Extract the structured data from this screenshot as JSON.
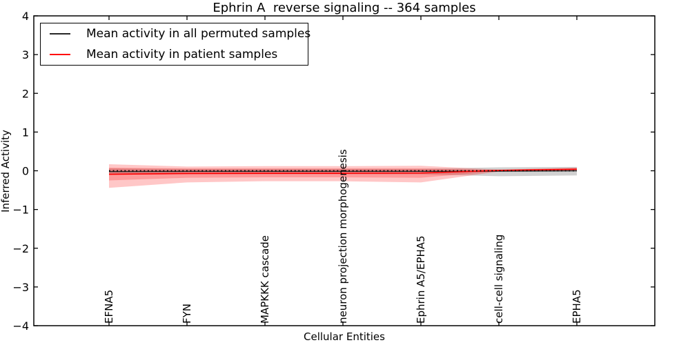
{
  "chart_data": {
    "type": "line",
    "title": "Ephrin A  reverse signaling -- 364 samples",
    "xlabel": "Cellular Entities",
    "ylabel": "Inferred Activity",
    "ylim": [
      -4,
      4
    ],
    "grid": false,
    "yticks": [
      {
        "value": 4,
        "label": "4"
      },
      {
        "value": 3,
        "label": "3"
      },
      {
        "value": 2,
        "label": "2"
      },
      {
        "value": 1,
        "label": "1"
      },
      {
        "value": 0,
        "label": "0"
      },
      {
        "value": -1,
        "label": "−1"
      },
      {
        "value": -2,
        "label": "−2"
      },
      {
        "value": -3,
        "label": "−3"
      },
      {
        "value": -4,
        "label": "−4"
      }
    ],
    "categories": [
      "EFNA5",
      "FYN",
      "MAPKKK cascade",
      "neuron projection morphogenesis",
      "Ephrin A5/EPHA5",
      "cell-cell signaling",
      "EPHA5"
    ],
    "series": [
      {
        "name": "Mean activity in all permuted samples",
        "slug": "permuted-mean-line",
        "color": "#262626",
        "style": "solid",
        "width": 1.4,
        "values": [
          -0.02,
          -0.015,
          -0.015,
          -0.015,
          -0.015,
          -0.01,
          0.0
        ]
      },
      {
        "name": "Mean activity in patient samples",
        "slug": "patient-mean-line",
        "color": "#ff0000",
        "style": "solid",
        "width": 1.6,
        "values": [
          -0.09,
          -0.07,
          -0.065,
          -0.065,
          -0.06,
          0.01,
          0.04
        ]
      },
      {
        "name": "zero reference",
        "slug": "zero-reference-line",
        "color": "#000000",
        "style": "dotted",
        "width": 1.8,
        "values": [
          0,
          0,
          0,
          0,
          0,
          0,
          0
        ]
      }
    ],
    "bands": [
      {
        "name": "permuted-samples-band",
        "color": "#999999",
        "opacity": 0.45,
        "top": [
          0.06,
          0.05,
          0.05,
          0.05,
          0.05,
          0.09,
          0.1
        ],
        "bottom": [
          -0.1,
          -0.09,
          -0.09,
          -0.09,
          -0.09,
          -0.14,
          -0.12
        ]
      },
      {
        "name": "patient-samples-outer-band",
        "color": "#ff0000",
        "opacity": 0.22,
        "top": [
          0.17,
          0.11,
          0.12,
          0.12,
          0.13,
          0.03,
          0.08
        ],
        "bottom": [
          -0.44,
          -0.3,
          -0.27,
          -0.27,
          -0.3,
          -0.02,
          0.0
        ]
      },
      {
        "name": "patient-samples-inner-band",
        "color": "#ff0000",
        "opacity": 0.22,
        "top": [
          0.08,
          0.06,
          0.06,
          0.06,
          0.06,
          0.02,
          0.07
        ],
        "bottom": [
          -0.25,
          -0.18,
          -0.17,
          -0.17,
          -0.18,
          -0.01,
          0.01
        ]
      }
    ],
    "legend": {
      "position": "upper left",
      "entries": [
        {
          "label": "Mean activity in all permuted samples",
          "color": "#262626"
        },
        {
          "label": "Mean activity in patient samples",
          "color": "#ff0000"
        }
      ]
    }
  }
}
